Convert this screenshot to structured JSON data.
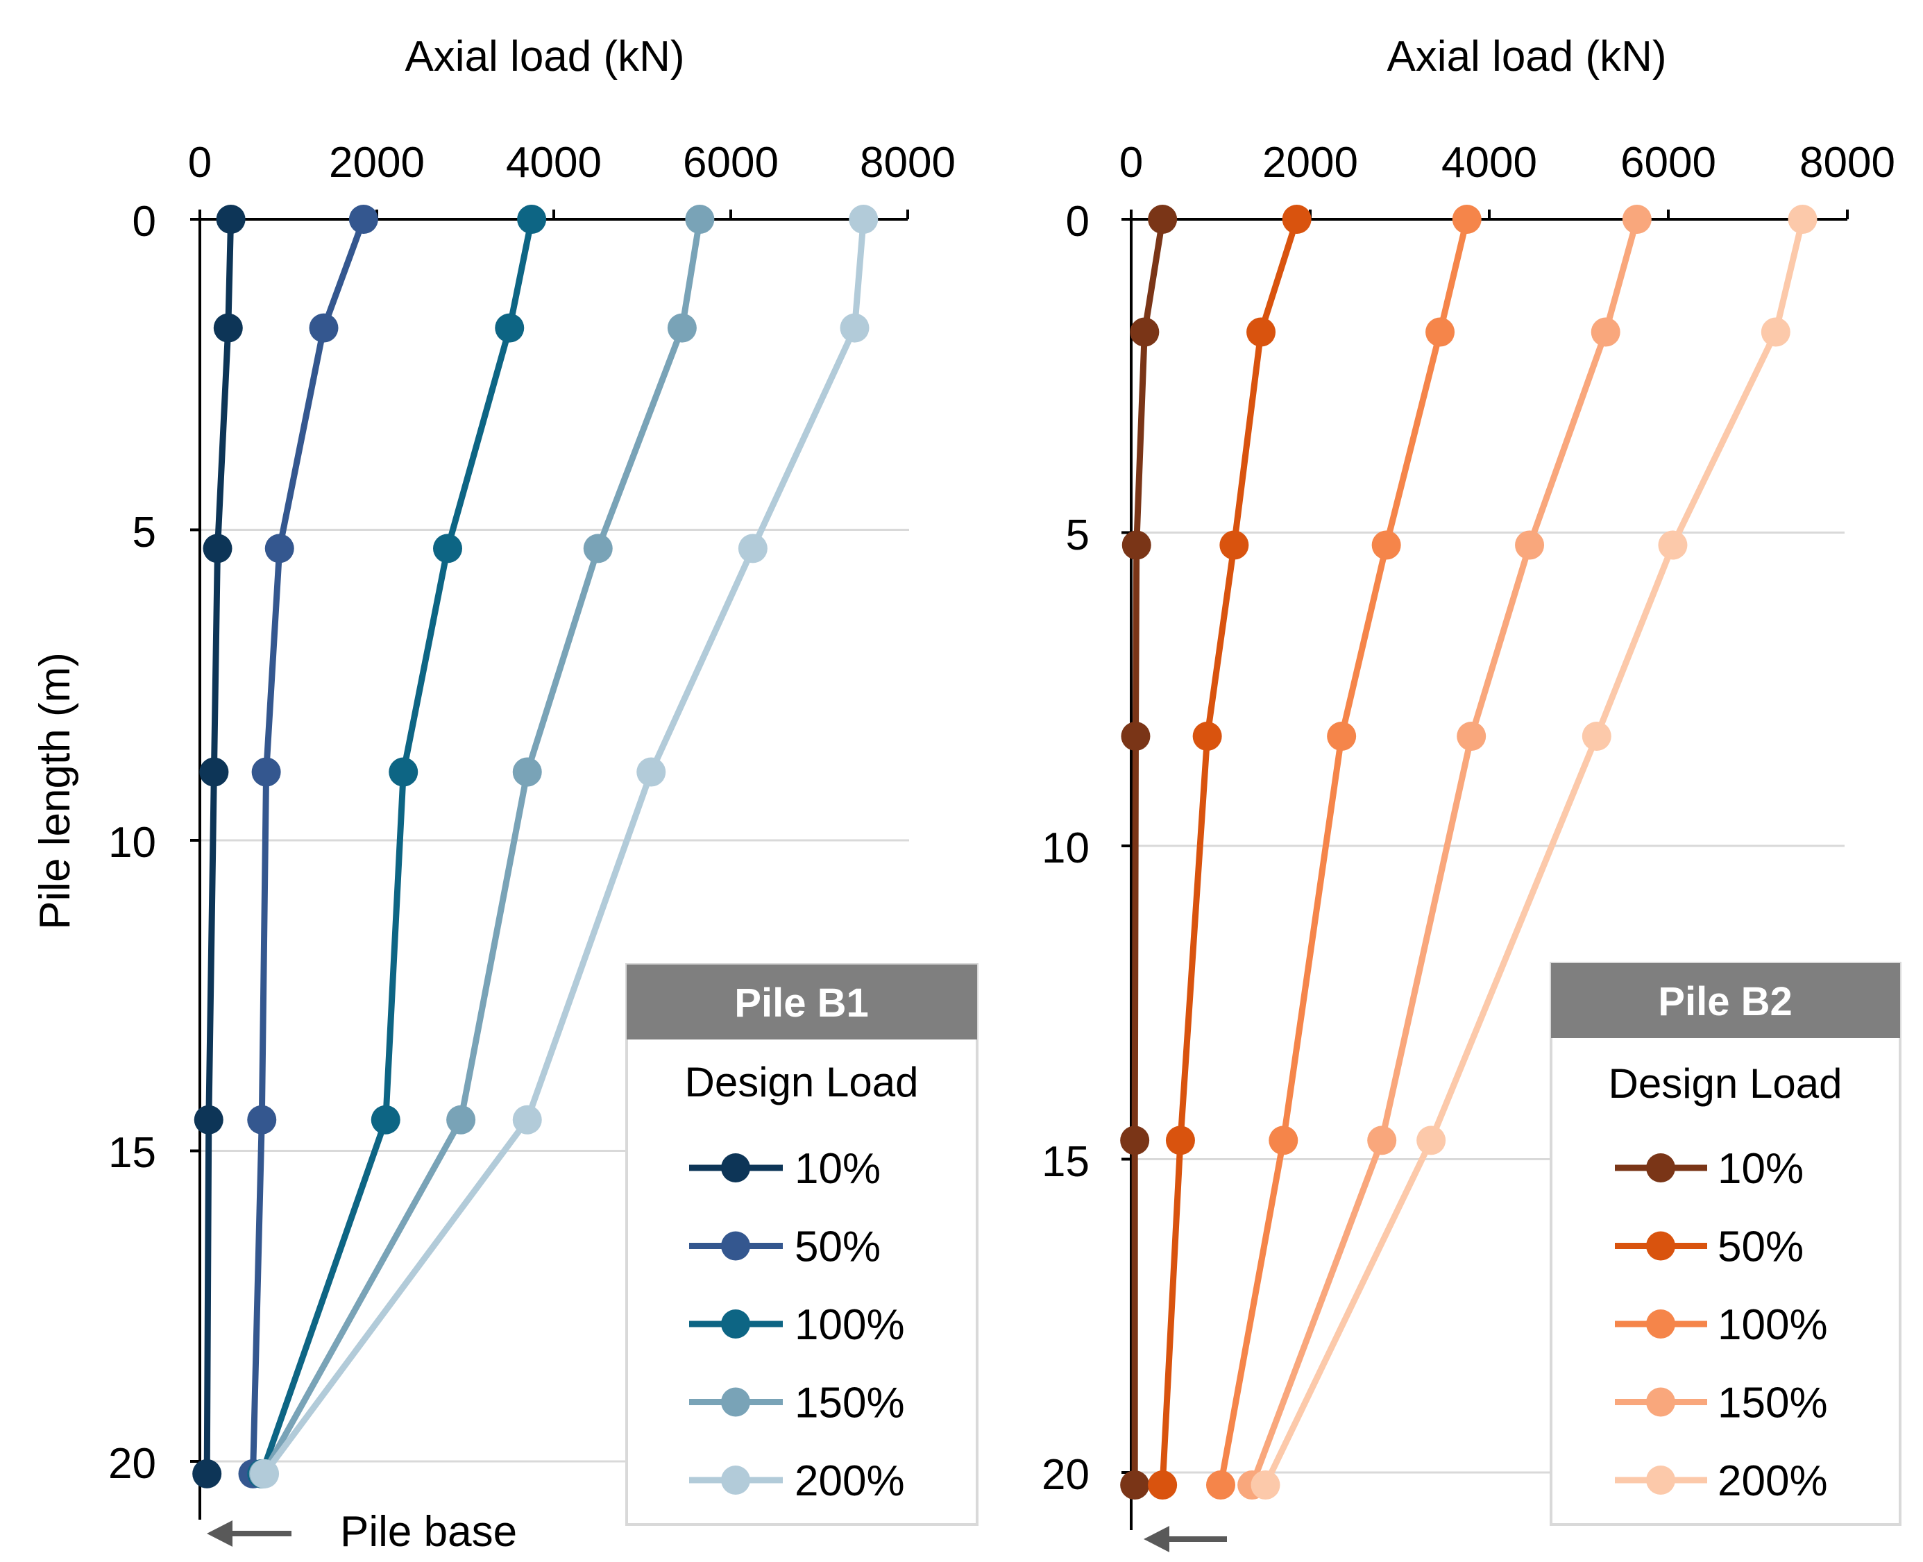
{
  "chart_data": [
    {
      "type": "line",
      "panel": "left",
      "xlabel": "Axial load (kN)",
      "ylabel": "Pile length (m)",
      "xlim": [
        0,
        8000
      ],
      "ylim": [
        0,
        21
      ],
      "x_axis_position": "top",
      "y_axis_inverted": true,
      "xticks": [
        "0",
        "2000",
        "4000",
        "6000",
        "8000"
      ],
      "yticks": [
        "0",
        "5",
        "10",
        "15",
        "20"
      ],
      "grid": "horizontal",
      "legend_header": "Pile B1",
      "legend_title": "Design Load",
      "legend_position": "bottom-right",
      "annotation": "Pile base",
      "series": [
        {
          "name": "10%",
          "color": "#0d3557",
          "points": [
            [
              350,
              0
            ],
            [
              320,
              1.75
            ],
            [
              200,
              5.3
            ],
            [
              160,
              8.9
            ],
            [
              100,
              14.5
            ],
            [
              80,
              20.2
            ]
          ]
        },
        {
          "name": "50%",
          "color": "#34578f",
          "points": [
            [
              1850,
              0
            ],
            [
              1400,
              1.75
            ],
            [
              900,
              5.3
            ],
            [
              750,
              8.9
            ],
            [
              700,
              14.5
            ],
            [
              600,
              20.2
            ]
          ]
        },
        {
          "name": "100%",
          "color": "#0d6584",
          "points": [
            [
              3750,
              0
            ],
            [
              3500,
              1.75
            ],
            [
              2800,
              5.3
            ],
            [
              2300,
              8.9
            ],
            [
              2100,
              14.5
            ],
            [
              700,
              20.2
            ]
          ]
        },
        {
          "name": "150%",
          "color": "#79a3b7",
          "points": [
            [
              5650,
              0
            ],
            [
              5450,
              1.75
            ],
            [
              4500,
              5.3
            ],
            [
              3700,
              8.9
            ],
            [
              2950,
              14.5
            ],
            [
              720,
              20.2
            ]
          ]
        },
        {
          "name": "200%",
          "color": "#b2cbd9",
          "points": [
            [
              7500,
              0
            ],
            [
              7400,
              1.75
            ],
            [
              6250,
              5.3
            ],
            [
              5100,
              8.9
            ],
            [
              3700,
              14.5
            ],
            [
              730,
              20.2
            ]
          ]
        }
      ]
    },
    {
      "type": "line",
      "panel": "right",
      "xlabel": "Axial load (kN)",
      "ylabel": "",
      "xlim": [
        0,
        8000
      ],
      "ylim": [
        0,
        21
      ],
      "x_axis_position": "top",
      "y_axis_inverted": true,
      "xticks": [
        "0",
        "2000",
        "4000",
        "6000",
        "8000"
      ],
      "yticks": [
        "0",
        "5",
        "10",
        "15",
        "20"
      ],
      "grid": "horizontal",
      "legend_header": "Pile B2",
      "legend_title": "Design Load",
      "legend_position": "bottom-right",
      "annotation": "",
      "series": [
        {
          "name": "10%",
          "color": "#7a3517",
          "points": [
            [
              350,
              0
            ],
            [
              150,
              1.8
            ],
            [
              60,
              5.2
            ],
            [
              50,
              8.25
            ],
            [
              40,
              14.7
            ],
            [
              40,
              20.2
            ]
          ]
        },
        {
          "name": "50%",
          "color": "#d9530e",
          "points": [
            [
              1850,
              0
            ],
            [
              1450,
              1.8
            ],
            [
              1150,
              5.2
            ],
            [
              850,
              8.25
            ],
            [
              550,
              14.7
            ],
            [
              350,
              20.2
            ]
          ]
        },
        {
          "name": "100%",
          "color": "#f5854a",
          "points": [
            [
              3750,
              0
            ],
            [
              3450,
              1.8
            ],
            [
              2850,
              5.2
            ],
            [
              2350,
              8.25
            ],
            [
              1700,
              14.7
            ],
            [
              1000,
              20.2
            ]
          ]
        },
        {
          "name": "150%",
          "color": "#f9a77c",
          "points": [
            [
              5650,
              0
            ],
            [
              5300,
              1.8
            ],
            [
              4450,
              5.2
            ],
            [
              3800,
              8.25
            ],
            [
              2800,
              14.7
            ],
            [
              1350,
              20.2
            ]
          ]
        },
        {
          "name": "200%",
          "color": "#fcc9aa",
          "points": [
            [
              7500,
              0
            ],
            [
              7200,
              1.8
            ],
            [
              6050,
              5.2
            ],
            [
              5200,
              8.25
            ],
            [
              3350,
              14.7
            ],
            [
              1500,
              20.2
            ]
          ]
        }
      ]
    }
  ]
}
